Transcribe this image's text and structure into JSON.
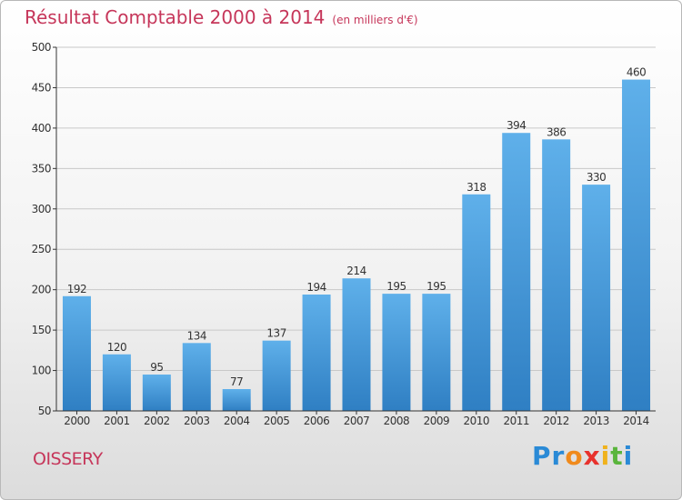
{
  "header": {
    "title": "Résultat Comptable 2000 à 2014",
    "subtitle": "(en milliers d'€)"
  },
  "footer": {
    "place": "OISSERY",
    "logo_text": "Proxiti",
    "logo_colors": [
      "#2a8ad6",
      "#2a8ad6",
      "#f08a1c",
      "#e8322d",
      "#f0b21c",
      "#5ab53c",
      "#2a8ad6"
    ]
  },
  "colors": {
    "title": "#c6365a",
    "bar_top": "#5fb0ea",
    "bar_bottom": "#2f7fc3",
    "grid": "#c8c8c8",
    "axis": "#333333"
  },
  "chart_data": {
    "type": "bar",
    "title": "Résultat Comptable 2000 à 2014",
    "subtitle": "(en milliers d'€)",
    "xlabel": "",
    "ylabel": "",
    "ylim": [
      50,
      500
    ],
    "yticks": [
      50,
      100,
      150,
      200,
      250,
      300,
      350,
      400,
      450,
      500
    ],
    "grid": true,
    "categories": [
      "2000",
      "2001",
      "2002",
      "2003",
      "2004",
      "2005",
      "2006",
      "2007",
      "2008",
      "2009",
      "2010",
      "2011",
      "2012",
      "2013",
      "2014"
    ],
    "values": [
      192,
      120,
      95,
      134,
      77,
      137,
      194,
      214,
      195,
      195,
      318,
      394,
      386,
      330,
      460
    ]
  }
}
